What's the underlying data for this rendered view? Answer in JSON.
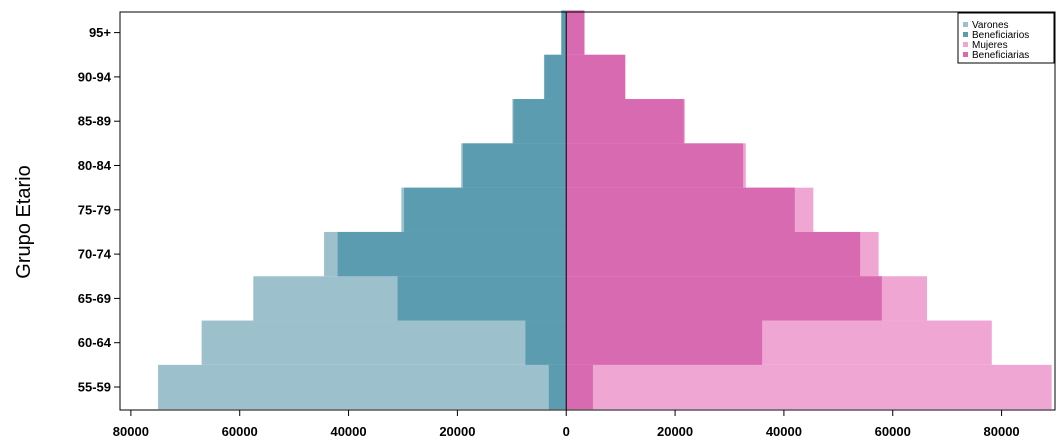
{
  "chart_data": {
    "type": "bar",
    "orientation": "population-pyramid",
    "ylabel": "Grupo Etario",
    "xlim": [
      -82000,
      90000
    ],
    "x_ticks": [
      -80000,
      -60000,
      -40000,
      -20000,
      0,
      20000,
      40000,
      60000,
      80000
    ],
    "x_tick_labels": [
      "80000",
      "60000",
      "40000",
      "20000",
      "0",
      "20000",
      "40000",
      "60000",
      "80000"
    ],
    "categories": [
      "55-59",
      "60-64",
      "65-69",
      "70-74",
      "75-79",
      "80-84",
      "85-89",
      "90-94",
      "95+"
    ],
    "legend_position": "top-right",
    "series": [
      {
        "name": "Varones",
        "side": "left",
        "color": "#9cc0cc",
        "values": [
          75000,
          67000,
          57500,
          44500,
          30300,
          19300,
          9900,
          4100,
          900
        ]
      },
      {
        "name": "Beneficiarios",
        "side": "left",
        "color": "#5b9cb0",
        "values": [
          3200,
          7500,
          31000,
          42000,
          29800,
          19000,
          9700,
          4000,
          900
        ]
      },
      {
        "name": "Mujeres",
        "side": "right",
        "color": "#efa6d3",
        "values": [
          89200,
          78200,
          66300,
          57400,
          45400,
          33000,
          21800,
          10900,
          3400
        ]
      },
      {
        "name": "Beneficiarias",
        "side": "right",
        "color": "#d76ab1",
        "values": [
          4900,
          36000,
          58000,
          54000,
          42000,
          32500,
          21600,
          10800,
          3300
        ]
      }
    ]
  }
}
